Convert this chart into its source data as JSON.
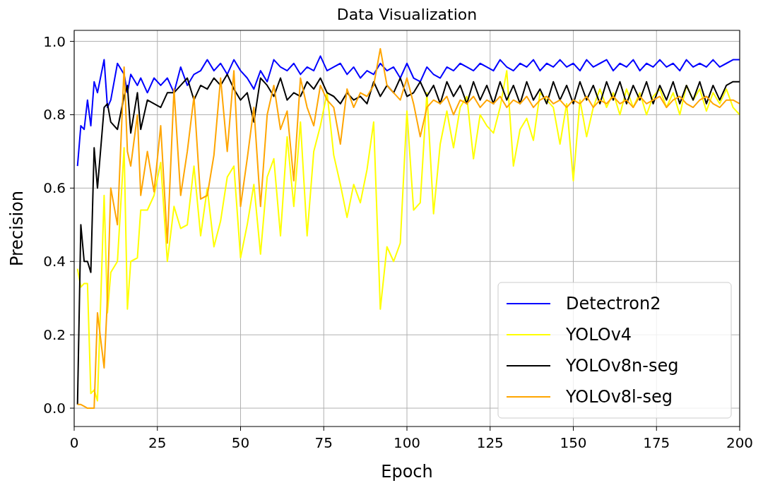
{
  "chart_data": {
    "type": "line",
    "title": "Data Visualization",
    "xlabel": "Epoch",
    "ylabel": "Precision",
    "x": [
      1,
      2,
      3,
      4,
      5,
      6,
      7,
      9,
      10,
      11,
      13,
      15,
      16,
      17,
      19,
      20,
      22,
      24,
      26,
      28,
      30,
      32,
      34,
      36,
      38,
      40,
      42,
      44,
      46,
      48,
      50,
      52,
      54,
      56,
      58,
      60,
      62,
      64,
      66,
      68,
      70,
      72,
      74,
      76,
      78,
      80,
      82,
      84,
      86,
      88,
      90,
      92,
      94,
      96,
      98,
      100,
      102,
      104,
      106,
      108,
      110,
      112,
      114,
      116,
      118,
      120,
      122,
      124,
      126,
      128,
      130,
      132,
      134,
      136,
      138,
      140,
      142,
      144,
      146,
      148,
      150,
      152,
      154,
      156,
      158,
      160,
      162,
      164,
      166,
      168,
      170,
      172,
      174,
      176,
      178,
      180,
      182,
      184,
      186,
      188,
      190,
      192,
      194,
      196,
      198,
      200
    ],
    "series": [
      {
        "name": "Detectron2",
        "color": "#0000ff",
        "values": [
          0.66,
          0.77,
          0.76,
          0.84,
          0.77,
          0.89,
          0.86,
          0.95,
          0.82,
          0.84,
          0.94,
          0.91,
          0.86,
          0.91,
          0.88,
          0.9,
          0.86,
          0.9,
          0.88,
          0.9,
          0.86,
          0.93,
          0.88,
          0.91,
          0.92,
          0.95,
          0.92,
          0.94,
          0.91,
          0.95,
          0.92,
          0.9,
          0.87,
          0.92,
          0.89,
          0.95,
          0.93,
          0.92,
          0.94,
          0.91,
          0.93,
          0.92,
          0.96,
          0.92,
          0.93,
          0.94,
          0.91,
          0.93,
          0.9,
          0.92,
          0.91,
          0.94,
          0.92,
          0.93,
          0.9,
          0.94,
          0.9,
          0.89,
          0.93,
          0.91,
          0.9,
          0.93,
          0.92,
          0.94,
          0.93,
          0.92,
          0.94,
          0.93,
          0.92,
          0.95,
          0.93,
          0.92,
          0.94,
          0.93,
          0.95,
          0.92,
          0.94,
          0.93,
          0.95,
          0.93,
          0.94,
          0.92,
          0.95,
          0.93,
          0.94,
          0.95,
          0.92,
          0.94,
          0.93,
          0.95,
          0.92,
          0.94,
          0.93,
          0.95,
          0.93,
          0.94,
          0.92,
          0.95,
          0.93,
          0.94,
          0.93,
          0.95,
          0.93,
          0.94,
          0.95,
          0.95
        ]
      },
      {
        "name": "YOLOv4",
        "color": "#ffff00",
        "values": [
          0.38,
          0.33,
          0.34,
          0.34,
          0.04,
          0.05,
          0.02,
          0.58,
          0.26,
          0.37,
          0.4,
          0.71,
          0.27,
          0.4,
          0.41,
          0.54,
          0.54,
          0.58,
          0.67,
          0.4,
          0.55,
          0.49,
          0.5,
          0.66,
          0.47,
          0.6,
          0.44,
          0.51,
          0.63,
          0.66,
          0.41,
          0.5,
          0.61,
          0.42,
          0.63,
          0.68,
          0.47,
          0.74,
          0.55,
          0.78,
          0.47,
          0.7,
          0.77,
          0.86,
          0.69,
          0.61,
          0.52,
          0.61,
          0.56,
          0.65,
          0.78,
          0.27,
          0.44,
          0.4,
          0.45,
          0.81,
          0.54,
          0.56,
          0.86,
          0.53,
          0.72,
          0.81,
          0.71,
          0.82,
          0.85,
          0.68,
          0.8,
          0.77,
          0.75,
          0.82,
          0.92,
          0.66,
          0.76,
          0.79,
          0.73,
          0.86,
          0.84,
          0.82,
          0.72,
          0.83,
          0.62,
          0.84,
          0.74,
          0.82,
          0.87,
          0.82,
          0.86,
          0.8,
          0.87,
          0.82,
          0.86,
          0.8,
          0.85,
          0.87,
          0.82,
          0.86,
          0.8,
          0.88,
          0.84,
          0.87,
          0.81,
          0.86,
          0.83,
          0.87,
          0.82,
          0.8
        ]
      },
      {
        "name": "YOLOv8n-seg",
        "color": "#000000",
        "values": [
          0.01,
          0.5,
          0.4,
          0.4,
          0.37,
          0.71,
          0.6,
          0.82,
          0.83,
          0.78,
          0.76,
          0.85,
          0.88,
          0.75,
          0.86,
          0.76,
          0.84,
          0.83,
          0.82,
          0.86,
          0.86,
          0.88,
          0.9,
          0.84,
          0.88,
          0.87,
          0.9,
          0.88,
          0.91,
          0.87,
          0.84,
          0.86,
          0.78,
          0.9,
          0.88,
          0.85,
          0.9,
          0.84,
          0.86,
          0.85,
          0.89,
          0.87,
          0.9,
          0.86,
          0.85,
          0.83,
          0.86,
          0.84,
          0.85,
          0.83,
          0.89,
          0.85,
          0.88,
          0.86,
          0.9,
          0.85,
          0.86,
          0.89,
          0.85,
          0.88,
          0.83,
          0.89,
          0.85,
          0.88,
          0.83,
          0.89,
          0.84,
          0.88,
          0.83,
          0.89,
          0.84,
          0.88,
          0.83,
          0.89,
          0.84,
          0.87,
          0.83,
          0.89,
          0.84,
          0.88,
          0.83,
          0.89,
          0.84,
          0.88,
          0.83,
          0.89,
          0.84,
          0.89,
          0.83,
          0.88,
          0.84,
          0.89,
          0.83,
          0.88,
          0.84,
          0.89,
          0.83,
          0.88,
          0.84,
          0.89,
          0.83,
          0.88,
          0.84,
          0.88,
          0.89,
          0.89
        ]
      },
      {
        "name": "YOLOv8l-seg",
        "color": "#ffa500",
        "values": [
          0.01,
          0.01,
          0.005,
          0.0,
          0.0,
          0.0,
          0.26,
          0.11,
          0.3,
          0.6,
          0.5,
          0.93,
          0.7,
          0.66,
          0.8,
          0.58,
          0.7,
          0.59,
          0.77,
          0.45,
          0.87,
          0.58,
          0.7,
          0.85,
          0.57,
          0.58,
          0.69,
          0.9,
          0.7,
          0.92,
          0.55,
          0.68,
          0.82,
          0.55,
          0.8,
          0.88,
          0.76,
          0.81,
          0.62,
          0.9,
          0.82,
          0.77,
          0.88,
          0.84,
          0.82,
          0.72,
          0.87,
          0.82,
          0.86,
          0.85,
          0.88,
          0.98,
          0.88,
          0.86,
          0.84,
          0.9,
          0.83,
          0.74,
          0.82,
          0.84,
          0.83,
          0.85,
          0.8,
          0.84,
          0.83,
          0.85,
          0.82,
          0.84,
          0.83,
          0.85,
          0.82,
          0.84,
          0.83,
          0.85,
          0.82,
          0.84,
          0.85,
          0.83,
          0.84,
          0.82,
          0.84,
          0.83,
          0.85,
          0.82,
          0.84,
          0.83,
          0.85,
          0.83,
          0.84,
          0.82,
          0.85,
          0.83,
          0.84,
          0.85,
          0.82,
          0.84,
          0.85,
          0.83,
          0.82,
          0.84,
          0.85,
          0.83,
          0.82,
          0.84,
          0.84,
          0.83
        ]
      }
    ],
    "xlim": [
      0,
      200
    ],
    "xticks": [
      0,
      25,
      50,
      75,
      100,
      125,
      150,
      175,
      200
    ],
    "ylim": [
      -0.05,
      1.03
    ],
    "yticks": [
      {
        "value": 0,
        "label": "0.0"
      },
      {
        "value": 0.2,
        "label": "0.2"
      },
      {
        "value": 0.4,
        "label": "0.4"
      },
      {
        "value": 0.6,
        "label": "0.6"
      },
      {
        "value": 0.8,
        "label": "0.8"
      },
      {
        "value": 1,
        "label": "1.0"
      }
    ],
    "grid": true,
    "legend": "bottom right"
  }
}
